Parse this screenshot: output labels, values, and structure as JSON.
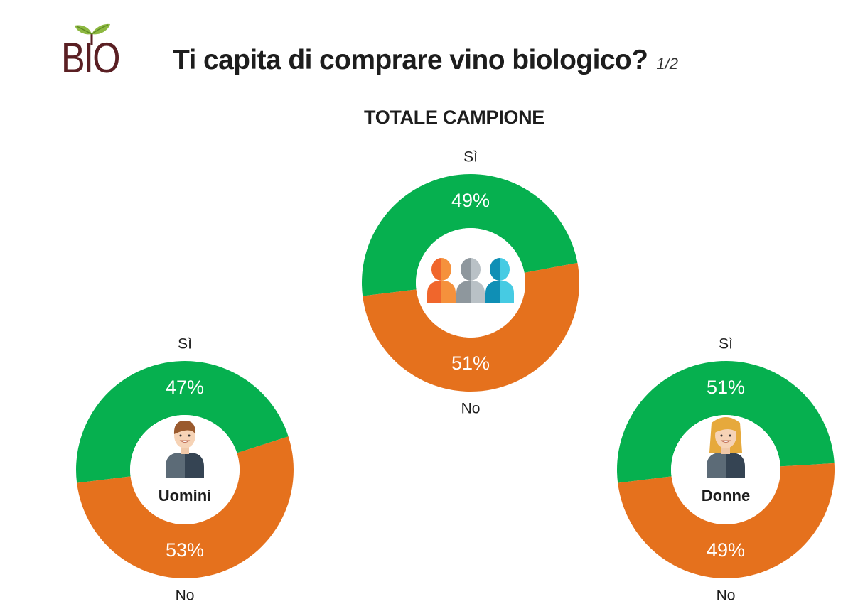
{
  "logo": {
    "text": "BIO"
  },
  "header": {
    "title": "Ti capita di comprare vino biologico?",
    "page": "1/2"
  },
  "section_heading": "TOTALE CAMPIONE",
  "colors": {
    "yes": "#06b04f",
    "no": "#e5711d",
    "hole": "#ffffff",
    "logo": "#5a1f23"
  },
  "chart_data": [
    {
      "type": "pie",
      "title": "TOTALE CAMPIONE",
      "group_label": "",
      "icon": "people-group-icon",
      "categories": [
        "Sì",
        "No"
      ],
      "values": [
        49,
        51
      ],
      "value_labels": [
        "49%",
        "51%"
      ]
    },
    {
      "type": "pie",
      "title": "",
      "group_label": "Uomini",
      "icon": "man-avatar-icon",
      "categories": [
        "Sì",
        "No"
      ],
      "values": [
        47,
        53
      ],
      "value_labels": [
        "47%",
        "53%"
      ]
    },
    {
      "type": "pie",
      "title": "",
      "group_label": "Donne",
      "icon": "woman-avatar-icon",
      "categories": [
        "Sì",
        "No"
      ],
      "values": [
        51,
        49
      ],
      "value_labels": [
        "51%",
        "49%"
      ]
    }
  ]
}
